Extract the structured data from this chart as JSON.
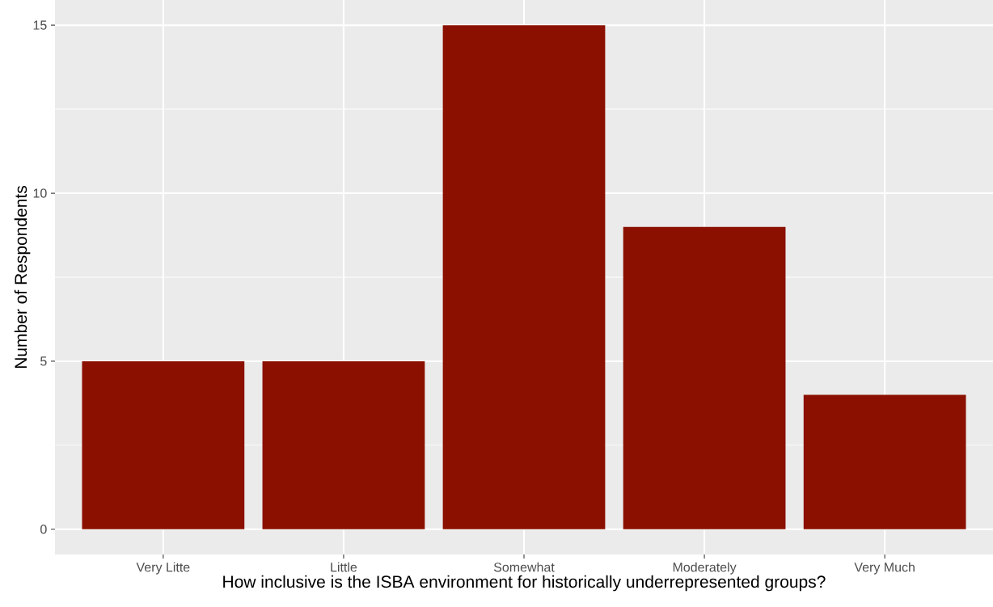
{
  "chart_data": {
    "type": "bar",
    "xlabel": "How inclusive is the ISBA environment for historically underrepresented groups?",
    "ylabel": "Number of Respondents",
    "categories": [
      "Very Litte",
      "Little",
      "Somewhat",
      "Moderately",
      "Very Much"
    ],
    "values": [
      5,
      5,
      15,
      9,
      4
    ],
    "color": "#8b1000",
    "ylim": [
      -0.75,
      15.75
    ],
    "yticks": [
      0,
      5,
      10,
      15
    ],
    "grid": true
  }
}
